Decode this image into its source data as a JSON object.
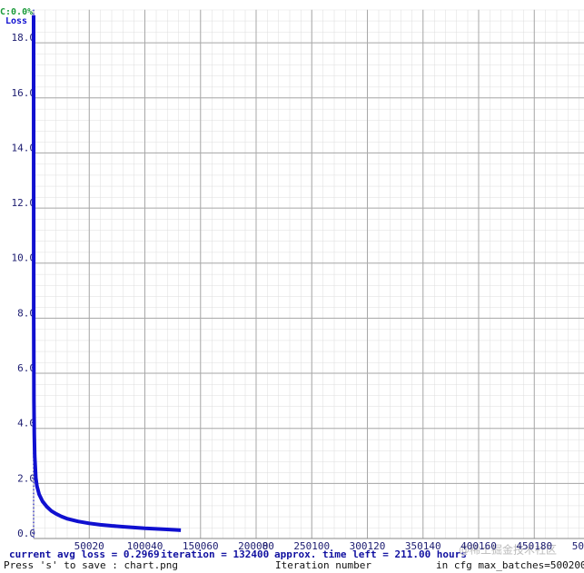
{
  "chart_data": {
    "type": "line",
    "corner_label": "C:0.0%",
    "y_label": "Loss",
    "x_label": "Iteration number",
    "status_loss": "current avg loss = 0.2969",
    "status_iteration": "iteration = 132400",
    "status_time": "approx. time left = 211.00 hours",
    "save_hint": "Press 's' to save : chart.png",
    "max_batches": "in cfg max_batches=500200",
    "watermark": "@稀土掘金技术社区",
    "grid": true,
    "xlim": [
      0,
      494900
    ],
    "ylim": [
      0,
      19.2
    ],
    "xticks": [
      0,
      50020,
      100040,
      150060,
      200080,
      250100,
      300120,
      350140,
      400160,
      450180,
      {
        "value": 500200,
        "label": "50"
      }
    ],
    "yticks": [
      {
        "value": 0,
        "label": "0.0"
      },
      {
        "value": 2,
        "label": "2.0"
      },
      {
        "value": 4,
        "label": "4.0"
      },
      {
        "value": 6,
        "label": "6.0"
      },
      {
        "value": 8,
        "label": "8.0"
      },
      {
        "value": 10,
        "label": "10.0"
      },
      {
        "value": 12,
        "label": "12.0"
      },
      {
        "value": 14,
        "label": "14.0"
      },
      {
        "value": 16,
        "label": "16.0"
      },
      {
        "value": 18,
        "label": "18.0"
      }
    ],
    "x": [
      0,
      100,
      300,
      600,
      1000,
      2000,
      3000,
      5000,
      8000,
      12000,
      16000,
      20000,
      25000,
      30000,
      40000,
      50000,
      60000,
      70000,
      80000,
      90000,
      100000,
      110000,
      120000,
      132400
    ],
    "series": [
      {
        "name": "Loss",
        "color": "#1010d0",
        "values": [
          19.0,
          8.0,
          5.0,
          3.8,
          3.0,
          2.2,
          1.9,
          1.6,
          1.35,
          1.15,
          1.0,
          0.9,
          0.8,
          0.72,
          0.62,
          0.55,
          0.5,
          0.46,
          0.43,
          0.4,
          0.37,
          0.35,
          0.33,
          0.3
        ]
      }
    ]
  }
}
